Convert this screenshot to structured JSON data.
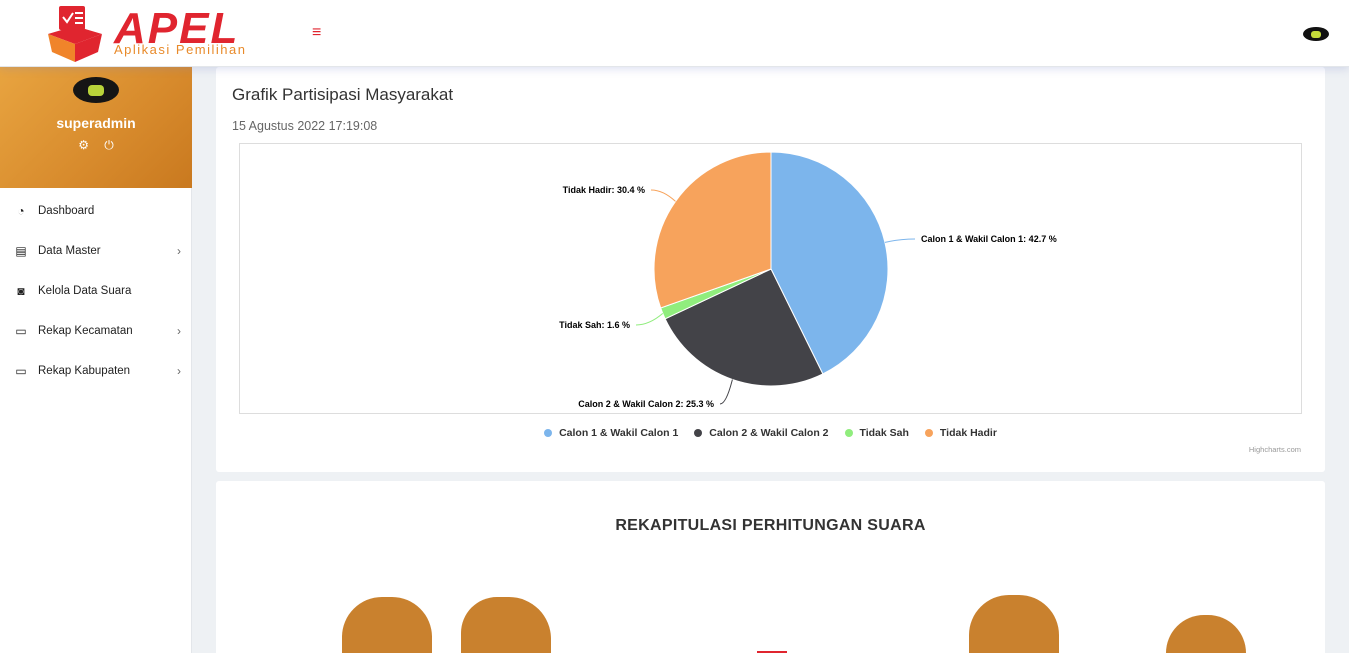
{
  "app": {
    "logo_title": "APEL",
    "logo_subtitle": "Aplikasi Pemilihan",
    "menu_icon": "hamburger-icon"
  },
  "user": {
    "name": "superadmin"
  },
  "sidebar": {
    "items": [
      {
        "label": "Dashboard",
        "icon": "dashboard-icon",
        "has_children": false
      },
      {
        "label": "Data Master",
        "icon": "id-card-icon",
        "has_children": true
      },
      {
        "label": "Kelola Data Suara",
        "icon": "vote-icon",
        "has_children": false
      },
      {
        "label": "Rekap Kecamatan",
        "icon": "monitor-icon",
        "has_children": true
      },
      {
        "label": "Rekap Kabupaten",
        "icon": "monitor-icon",
        "has_children": true
      }
    ]
  },
  "participation": {
    "title": "Grafik Partisipasi Masyarakat",
    "date": "15 Agustus 2022 17:19:08",
    "credits": "Highcharts.com"
  },
  "chart_data": {
    "type": "pie",
    "slices": [
      {
        "name": "Calon 1 & Wakil Calon 1",
        "value": 42.7,
        "label": "Calon 1 & Wakil Calon 1: 42.7 %",
        "color": "#7cb5ec"
      },
      {
        "name": "Calon 2 & Wakil Calon 2",
        "value": 25.3,
        "label": "Calon 2 & Wakil Calon 2: 25.3 %",
        "color": "#434348"
      },
      {
        "name": "Tidak Sah",
        "value": 1.6,
        "label": "Tidak Sah: 1.6 %",
        "color": "#90ed7d"
      },
      {
        "name": "Tidak Hadir",
        "value": 30.4,
        "label": "Tidak Hadir: 30.4 %",
        "color": "#f7a35c"
      }
    ],
    "legend": "bottom-center"
  },
  "recap": {
    "title": "REKAPITULASI PERHITUNGAN SUARA"
  }
}
